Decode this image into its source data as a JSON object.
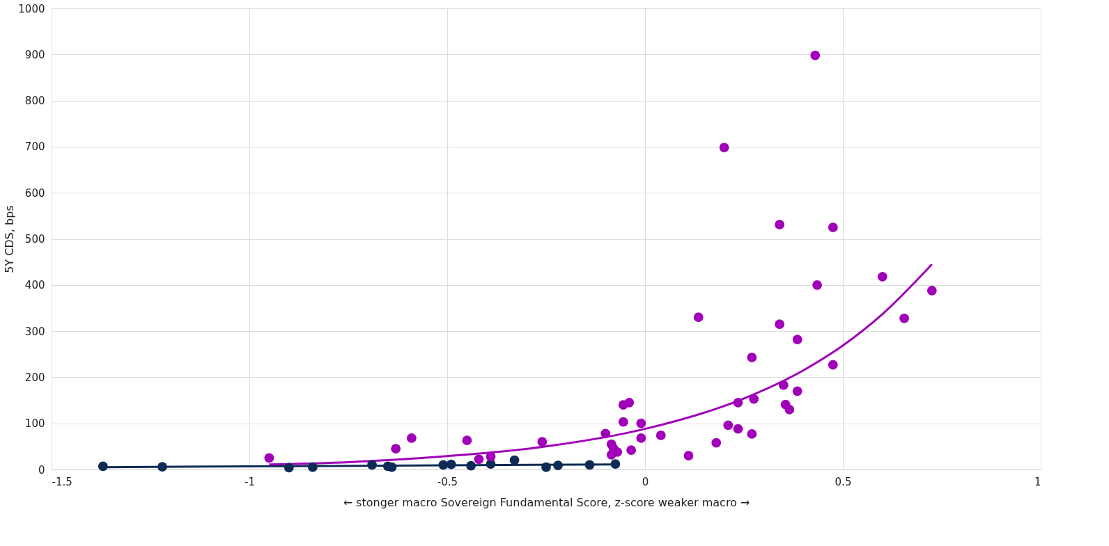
{
  "chart_data": {
    "type": "scatter",
    "xlabel": "← stonger macro     Sovereign Fundamental Score, z-score     weaker macro →",
    "ylabel": "5Y CDS, bps",
    "xlim": [
      -1.5,
      1
    ],
    "xticks": [
      -1.5,
      -1,
      -0.5,
      0,
      0.5,
      1
    ],
    "ylim": [
      0,
      1000
    ],
    "yticks": [
      0,
      100,
      200,
      300,
      400,
      500,
      600,
      700,
      800,
      900,
      1000
    ],
    "grid": true,
    "marker": "circle",
    "series": [
      {
        "type": "line",
        "marker": "none",
        "line_style": "solid",
        "color": "#0d2b55",
        "x": [
          -1.37,
          -0.075
        ],
        "values": [
          5,
          11
        ]
      },
      {
        "type": "line",
        "marker": "none",
        "line_style": "solid",
        "color": "#a000b8",
        "x": [
          -0.95,
          -0.75,
          -0.5,
          -0.25,
          0,
          0.25,
          0.4,
          0.5,
          0.6,
          0.725
        ],
        "values": [
          11,
          16,
          29,
          50,
          88,
          154,
          215,
          269,
          337,
          445
        ]
      },
      {
        "type": "scatter",
        "color": "#0d2b55",
        "x": [
          -1.37,
          -1.22,
          -0.9,
          -0.84,
          -0.69,
          -0.65,
          -0.64,
          -0.51,
          -0.49,
          -0.44,
          -0.39,
          -0.33,
          -0.25,
          -0.22,
          -0.14,
          -0.075
        ],
        "values": [
          7,
          6,
          4,
          5,
          10,
          7,
          5,
          10,
          11,
          8,
          12,
          20,
          5,
          9,
          10,
          12
        ]
      },
      {
        "type": "scatter",
        "color": "#a000b8",
        "x": [
          -0.95,
          -0.63,
          -0.59,
          -0.45,
          -0.42,
          -0.39,
          -0.26,
          -0.1,
          -0.085,
          -0.08,
          -0.085,
          -0.07,
          -0.055,
          -0.04,
          -0.055,
          -0.035,
          -0.01,
          -0.01,
          0.04,
          0.11,
          0.135,
          0.18,
          0.2,
          0.21,
          0.235,
          0.235,
          0.27,
          0.27,
          0.275,
          0.34,
          0.34,
          0.35,
          0.355,
          0.365,
          0.385,
          0.385,
          0.43,
          0.435,
          0.475,
          0.475,
          0.6,
          0.655,
          0.725
        ],
        "values": [
          25,
          45,
          68,
          63,
          22,
          28,
          60,
          78,
          55,
          46,
          32,
          38,
          140,
          145,
          103,
          42,
          100,
          68,
          74,
          30,
          330,
          58,
          698,
          96,
          145,
          88,
          243,
          77,
          153,
          531,
          315,
          183,
          141,
          130,
          282,
          170,
          898,
          400,
          525,
          227,
          418,
          328,
          388
        ]
      }
    ]
  }
}
